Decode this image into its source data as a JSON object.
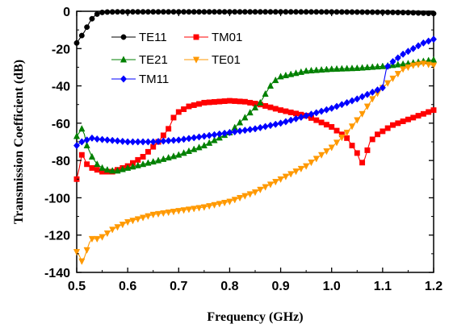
{
  "chart_data": {
    "type": "line",
    "title": "",
    "xlabel": "Frequency (GHz)",
    "ylabel": "Transmission Coefficient (dB)",
    "xlim": [
      0.5,
      1.2
    ],
    "ylim": [
      -140,
      0
    ],
    "x_ticks": [
      "0.5",
      "0.6",
      "0.7",
      "0.8",
      "0.9",
      "1.0",
      "1.1",
      "1.2"
    ],
    "y_ticks": [
      "0",
      "-20",
      "-40",
      "-60",
      "-80",
      "-100",
      "-120",
      "-140"
    ],
    "grid": false,
    "legend_position": "top-left",
    "series": [
      {
        "name": "TE11",
        "color": "#000000",
        "marker": "circle",
        "points": [
          [
            0.5,
            -17
          ],
          [
            0.505,
            -15
          ],
          [
            0.51,
            -13
          ],
          [
            0.515,
            -11
          ],
          [
            0.52,
            -8.5
          ],
          [
            0.525,
            -6
          ],
          [
            0.53,
            -4
          ],
          [
            0.535,
            -2.5
          ],
          [
            0.54,
            -1.5
          ],
          [
            0.545,
            -0.9
          ],
          [
            0.55,
            -0.6
          ],
          [
            0.56,
            -0.4
          ],
          [
            0.58,
            -0.3
          ],
          [
            0.6,
            -0.3
          ],
          [
            0.7,
            -0.3
          ],
          [
            0.8,
            -0.3
          ],
          [
            0.9,
            -0.3
          ],
          [
            1.0,
            -0.35
          ],
          [
            1.1,
            -0.5
          ],
          [
            1.15,
            -0.7
          ],
          [
            1.2,
            -1.2
          ]
        ]
      },
      {
        "name": "TM01",
        "color": "#ff0000",
        "marker": "square",
        "points": [
          [
            0.5,
            -90
          ],
          [
            0.505,
            -84
          ],
          [
            0.51,
            -77
          ],
          [
            0.515,
            -79
          ],
          [
            0.52,
            -82
          ],
          [
            0.53,
            -84
          ],
          [
            0.55,
            -86
          ],
          [
            0.57,
            -86
          ],
          [
            0.6,
            -83
          ],
          [
            0.63,
            -78
          ],
          [
            0.66,
            -70
          ],
          [
            0.68,
            -63
          ],
          [
            0.69,
            -57
          ],
          [
            0.7,
            -54
          ],
          [
            0.72,
            -51
          ],
          [
            0.75,
            -49
          ],
          [
            0.8,
            -48
          ],
          [
            0.83,
            -48.5
          ],
          [
            0.86,
            -50
          ],
          [
            0.9,
            -53
          ],
          [
            0.95,
            -56
          ],
          [
            1.0,
            -62
          ],
          [
            1.03,
            -68
          ],
          [
            1.05,
            -76
          ],
          [
            1.058,
            -82
          ],
          [
            1.065,
            -79
          ],
          [
            1.075,
            -70
          ],
          [
            1.09,
            -66
          ],
          [
            1.12,
            -61
          ],
          [
            1.15,
            -58
          ],
          [
            1.18,
            -55
          ],
          [
            1.2,
            -53
          ]
        ]
      },
      {
        "name": "TE21",
        "color": "#008000",
        "marker": "triangle-up",
        "points": [
          [
            0.5,
            -67
          ],
          [
            0.505,
            -65
          ],
          [
            0.51,
            -63
          ],
          [
            0.515,
            -66
          ],
          [
            0.52,
            -72
          ],
          [
            0.53,
            -78
          ],
          [
            0.54,
            -82
          ],
          [
            0.55,
            -84
          ],
          [
            0.56,
            -85
          ],
          [
            0.57,
            -85.5
          ],
          [
            0.58,
            -85.5
          ],
          [
            0.6,
            -84
          ],
          [
            0.63,
            -82
          ],
          [
            0.66,
            -80
          ],
          [
            0.7,
            -77
          ],
          [
            0.75,
            -72
          ],
          [
            0.8,
            -65
          ],
          [
            0.83,
            -57
          ],
          [
            0.86,
            -49
          ],
          [
            0.875,
            -42
          ],
          [
            0.885,
            -38
          ],
          [
            0.9,
            -35
          ],
          [
            0.95,
            -32
          ],
          [
            1.0,
            -31
          ],
          [
            1.05,
            -30.5
          ],
          [
            1.1,
            -29.5
          ],
          [
            1.15,
            -28
          ],
          [
            1.2,
            -26
          ]
        ]
      },
      {
        "name": "TE01",
        "color": "#ff9900",
        "marker": "triangle-down",
        "points": [
          [
            0.5,
            -129
          ],
          [
            0.505,
            -131
          ],
          [
            0.51,
            -134
          ],
          [
            0.515,
            -132
          ],
          [
            0.52,
            -128
          ],
          [
            0.525,
            -124
          ],
          [
            0.53,
            -122
          ],
          [
            0.54,
            -122
          ],
          [
            0.55,
            -121
          ],
          [
            0.57,
            -117
          ],
          [
            0.6,
            -113
          ],
          [
            0.65,
            -109
          ],
          [
            0.7,
            -107
          ],
          [
            0.75,
            -105
          ],
          [
            0.8,
            -102
          ],
          [
            0.85,
            -97
          ],
          [
            0.9,
            -90
          ],
          [
            0.95,
            -83
          ],
          [
            1.0,
            -73
          ],
          [
            1.03,
            -65
          ],
          [
            1.06,
            -55
          ],
          [
            1.08,
            -47
          ],
          [
            1.1,
            -41
          ],
          [
            1.12,
            -36
          ],
          [
            1.14,
            -31
          ],
          [
            1.16,
            -29
          ],
          [
            1.18,
            -28
          ],
          [
            1.2,
            -29
          ]
        ]
      },
      {
        "name": "TM11",
        "color": "#0000ff",
        "marker": "diamond",
        "points": [
          [
            0.5,
            -72
          ],
          [
            0.51,
            -70
          ],
          [
            0.52,
            -69
          ],
          [
            0.53,
            -68
          ],
          [
            0.54,
            -68.5
          ],
          [
            0.56,
            -69
          ],
          [
            0.6,
            -70
          ],
          [
            0.65,
            -70
          ],
          [
            0.7,
            -69
          ],
          [
            0.75,
            -67
          ],
          [
            0.8,
            -65
          ],
          [
            0.85,
            -63
          ],
          [
            0.9,
            -60
          ],
          [
            0.95,
            -56
          ],
          [
            1.0,
            -52
          ],
          [
            1.05,
            -47
          ],
          [
            1.1,
            -41
          ],
          [
            1.108,
            -30
          ],
          [
            1.12,
            -27
          ],
          [
            1.14,
            -23
          ],
          [
            1.16,
            -20
          ],
          [
            1.18,
            -17
          ],
          [
            1.2,
            -15
          ]
        ]
      }
    ]
  }
}
